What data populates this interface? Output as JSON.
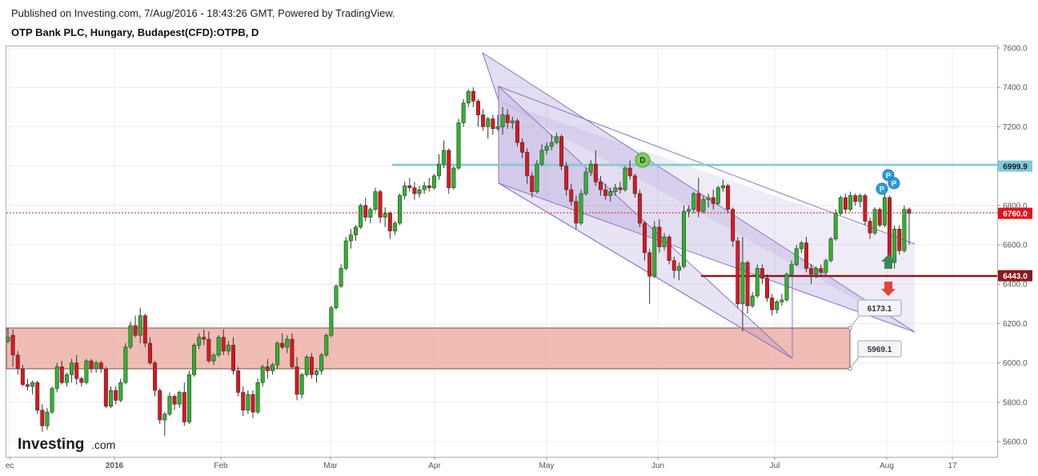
{
  "header": {
    "published": "Published on Investing.com, 7/Aug/2016 - 18:43:26 GMT, Powered by TradingView.",
    "title": "OTP Bank PLC, Hungary, Budapest(CFD):OTPB, D"
  },
  "logo": {
    "brand": "Investing",
    "suffix": ".com"
  },
  "colors": {
    "up": "#2db52d",
    "down": "#e0141e",
    "channel": "#9a86cc",
    "support_zone": "#e9a79a",
    "resistance_line": "#7fcbd9",
    "support_line": "#8b1a1a",
    "price_label": "#e0141e",
    "marker_d": "#7dcf5a",
    "marker_p": "#2a9de6"
  },
  "chart_data": {
    "type": "candlestick",
    "y_range": [
      5520,
      7660
    ],
    "y_ticks": [
      "7600.0",
      "7400.0",
      "7200.0",
      "7000.0",
      "6800.0",
      "6600.0",
      "6400.0",
      "6200.0",
      "6000.0",
      "5800.0",
      "5600.0"
    ],
    "x_labels": [
      "ec",
      "2016",
      "Feb",
      "Mar",
      "Apr",
      "May",
      "Jun",
      "Jul",
      "Aug",
      "17"
    ],
    "price_labels": [
      {
        "text": "6999.9",
        "value": 6999.9,
        "kind": "resistance"
      },
      {
        "text": "6760.0",
        "value": 6760.0,
        "kind": "last"
      },
      {
        "text": "6443.0",
        "value": 6443.0,
        "kind": "support"
      }
    ],
    "zone_labels": [
      {
        "text": "6173.1",
        "value": 6173.1
      },
      {
        "text": "5969.1",
        "value": 5969.1
      }
    ],
    "markers": [
      {
        "text": "D",
        "value": 6990
      },
      {
        "text": "P",
        "value": 6880
      },
      {
        "text": "P",
        "value": 6860
      },
      {
        "text": "P",
        "value": 6800
      }
    ],
    "candles": [
      [
        6110,
        6180,
        6100,
        6130
      ],
      [
        6140,
        6170,
        5980,
        6040
      ],
      [
        6040,
        6060,
        5940,
        5970
      ],
      [
        5970,
        5990,
        5880,
        5890
      ],
      [
        5890,
        5920,
        5860,
        5880
      ],
      [
        5880,
        5910,
        5840,
        5900
      ],
      [
        5900,
        5910,
        5740,
        5760
      ],
      [
        5760,
        5790,
        5650,
        5680
      ],
      [
        5680,
        5770,
        5660,
        5750
      ],
      [
        5750,
        5880,
        5740,
        5870
      ],
      [
        5870,
        6000,
        5850,
        5980
      ],
      [
        5980,
        6010,
        5890,
        5900
      ],
      [
        5900,
        5950,
        5880,
        5940
      ],
      [
        5940,
        6020,
        5900,
        6000
      ],
      [
        6000,
        6040,
        5890,
        5920
      ],
      [
        5920,
        5930,
        5880,
        5900
      ],
      [
        5900,
        6020,
        5890,
        6010
      ],
      [
        6010,
        6020,
        5950,
        5970
      ],
      [
        5970,
        6010,
        5950,
        6000
      ],
      [
        6000,
        6010,
        5950,
        5970
      ],
      [
        5970,
        5980,
        5770,
        5780
      ],
      [
        5780,
        5880,
        5770,
        5860
      ],
      [
        5860,
        5880,
        5790,
        5810
      ],
      [
        5810,
        5920,
        5800,
        5900
      ],
      [
        5900,
        6100,
        5890,
        6080
      ],
      [
        6080,
        6210,
        6070,
        6190
      ],
      [
        6190,
        6240,
        6130,
        6140
      ],
      [
        6140,
        6280,
        6100,
        6240
      ],
      [
        6240,
        6250,
        6080,
        6100
      ],
      [
        6100,
        6130,
        5990,
        6000
      ],
      [
        6000,
        6010,
        5830,
        5860
      ],
      [
        5860,
        5870,
        5690,
        5710
      ],
      [
        5710,
        5750,
        5630,
        5740
      ],
      [
        5740,
        5850,
        5730,
        5830
      ],
      [
        5830,
        5840,
        5760,
        5790
      ],
      [
        5790,
        5860,
        5770,
        5850
      ],
      [
        5850,
        5900,
        5680,
        5700
      ],
      [
        5700,
        5960,
        5690,
        5940
      ],
      [
        5940,
        6100,
        5930,
        6090
      ],
      [
        6090,
        6150,
        6070,
        6130
      ],
      [
        6130,
        6170,
        6090,
        6120
      ],
      [
        6120,
        6160,
        6000,
        6010
      ],
      [
        6010,
        6050,
        5990,
        6040
      ],
      [
        6040,
        6140,
        6030,
        6130
      ],
      [
        6130,
        6170,
        6040,
        6060
      ],
      [
        6060,
        6110,
        6040,
        6090
      ],
      [
        6090,
        6130,
        5940,
        5960
      ],
      [
        5960,
        5980,
        5830,
        5850
      ],
      [
        5850,
        5880,
        5730,
        5760
      ],
      [
        5760,
        5860,
        5740,
        5840
      ],
      [
        5840,
        5860,
        5720,
        5750
      ],
      [
        5750,
        5920,
        5740,
        5900
      ],
      [
        5900,
        5990,
        5880,
        5980
      ],
      [
        5980,
        6020,
        5920,
        5960
      ],
      [
        5960,
        6000,
        5940,
        5990
      ],
      [
        5990,
        6110,
        5970,
        6100
      ],
      [
        6100,
        6150,
        6070,
        6080
      ],
      [
        6080,
        6140,
        6050,
        6120
      ],
      [
        6120,
        6150,
        5970,
        5980
      ],
      [
        5980,
        6030,
        5810,
        5840
      ],
      [
        5840,
        5950,
        5820,
        5940
      ],
      [
        5940,
        6040,
        5930,
        6030
      ],
      [
        6030,
        6050,
        5920,
        5940
      ],
      [
        5940,
        5970,
        5900,
        5960
      ],
      [
        5960,
        6050,
        5940,
        6040
      ],
      [
        6040,
        6150,
        6030,
        6140
      ],
      [
        6140,
        6290,
        6130,
        6280
      ],
      [
        6280,
        6400,
        6270,
        6390
      ],
      [
        6390,
        6500,
        6380,
        6480
      ],
      [
        6480,
        6640,
        6470,
        6620
      ],
      [
        6620,
        6680,
        6580,
        6650
      ],
      [
        6650,
        6700,
        6620,
        6690
      ],
      [
        6690,
        6810,
        6680,
        6800
      ],
      [
        6800,
        6840,
        6720,
        6740
      ],
      [
        6740,
        6790,
        6710,
        6780
      ],
      [
        6780,
        6890,
        6770,
        6870
      ],
      [
        6870,
        6880,
        6710,
        6740
      ],
      [
        6740,
        6790,
        6690,
        6760
      ],
      [
        6760,
        6770,
        6630,
        6670
      ],
      [
        6670,
        6720,
        6650,
        6710
      ],
      [
        6710,
        6860,
        6700,
        6850
      ],
      [
        6850,
        6920,
        6830,
        6900
      ],
      [
        6900,
        6940,
        6870,
        6890
      ],
      [
        6890,
        6920,
        6830,
        6860
      ],
      [
        6860,
        6900,
        6840,
        6880
      ],
      [
        6880,
        6920,
        6860,
        6900
      ],
      [
        6900,
        6940,
        6870,
        6890
      ],
      [
        6890,
        6960,
        6880,
        6950
      ],
      [
        6950,
        7060,
        6930,
        7010
      ],
      [
        7010,
        7130,
        6990,
        7080
      ],
      [
        7080,
        7090,
        6860,
        6890
      ],
      [
        6890,
        7000,
        6880,
        6990
      ],
      [
        6990,
        7240,
        6980,
        7220
      ],
      [
        7220,
        7340,
        7200,
        7320
      ],
      [
        7320,
        7390,
        7300,
        7380
      ],
      [
        7380,
        7400,
        7300,
        7330
      ],
      [
        7330,
        7340,
        7200,
        7260
      ],
      [
        7260,
        7290,
        7180,
        7200
      ],
      [
        7200,
        7250,
        7140,
        7240
      ],
      [
        7240,
        7260,
        7160,
        7190
      ],
      [
        7190,
        7260,
        7180,
        7200
      ],
      [
        7200,
        7300,
        7160,
        7260
      ],
      [
        7260,
        7290,
        7190,
        7220
      ],
      [
        7220,
        7250,
        7190,
        7230
      ],
      [
        7230,
        7240,
        7100,
        7120
      ],
      [
        7120,
        7140,
        7040,
        7070
      ],
      [
        7070,
        7090,
        6910,
        6950
      ],
      [
        6950,
        6970,
        6840,
        6870
      ],
      [
        6870,
        7030,
        6860,
        7010
      ],
      [
        7010,
        7110,
        7000,
        7080
      ],
      [
        7080,
        7120,
        7060,
        7100
      ],
      [
        7100,
        7160,
        7080,
        7120
      ],
      [
        7120,
        7170,
        7110,
        7150
      ],
      [
        7150,
        7160,
        6980,
        7000
      ],
      [
        7000,
        7020,
        6850,
        6880
      ],
      [
        6880,
        6910,
        6800,
        6820
      ],
      [
        6820,
        6850,
        6680,
        6710
      ],
      [
        6710,
        6880,
        6700,
        6860
      ],
      [
        6860,
        6990,
        6850,
        6970
      ],
      [
        6970,
        7030,
        6950,
        7010
      ],
      [
        7010,
        7080,
        6900,
        6920
      ],
      [
        6920,
        6950,
        6850,
        6880
      ],
      [
        6880,
        6910,
        6830,
        6850
      ],
      [
        6850,
        6890,
        6820,
        6870
      ],
      [
        6870,
        6910,
        6850,
        6890
      ],
      [
        6890,
        6920,
        6860,
        6880
      ],
      [
        6880,
        7000,
        6870,
        6990
      ],
      [
        6990,
        7030,
        6930,
        6950
      ],
      [
        6950,
        6960,
        6840,
        6860
      ],
      [
        6860,
        6880,
        6690,
        6710
      ],
      [
        6710,
        6720,
        6520,
        6560
      ],
      [
        6560,
        6580,
        6300,
        6440
      ],
      [
        6440,
        6720,
        6430,
        6690
      ],
      [
        6690,
        6730,
        6560,
        6590
      ],
      [
        6590,
        6660,
        6570,
        6640
      ],
      [
        6640,
        6650,
        6500,
        6520
      ],
      [
        6520,
        6540,
        6430,
        6470
      ],
      [
        6470,
        6510,
        6420,
        6490
      ],
      [
        6490,
        6800,
        6480,
        6770
      ],
      [
        6770,
        6800,
        6740,
        6780
      ],
      [
        6780,
        6870,
        6760,
        6860
      ],
      [
        6860,
        6940,
        6740,
        6770
      ],
      [
        6770,
        6850,
        6760,
        6830
      ],
      [
        6830,
        6860,
        6790,
        6840
      ],
      [
        6840,
        6880,
        6780,
        6810
      ],
      [
        6810,
        6900,
        6800,
        6890
      ],
      [
        6890,
        6930,
        6870,
        6900
      ],
      [
        6900,
        6910,
        6760,
        6780
      ],
      [
        6780,
        6790,
        6590,
        6620
      ],
      [
        6620,
        6640,
        6280,
        6300
      ],
      [
        6300,
        6640,
        6160,
        6510
      ],
      [
        6510,
        6520,
        6250,
        6290
      ],
      [
        6290,
        6360,
        6280,
        6340
      ],
      [
        6340,
        6500,
        6330,
        6480
      ],
      [
        6480,
        6500,
        6400,
        6430
      ],
      [
        6430,
        6450,
        6310,
        6330
      ],
      [
        6330,
        6350,
        6240,
        6270
      ],
      [
        6270,
        6320,
        6250,
        6310
      ],
      [
        6310,
        6350,
        6290,
        6320
      ],
      [
        6320,
        6460,
        6310,
        6450
      ],
      [
        6450,
        6520,
        6440,
        6500
      ],
      [
        6500,
        6600,
        6490,
        6580
      ],
      [
        6580,
        6620,
        6560,
        6610
      ],
      [
        6610,
        6640,
        6460,
        6480
      ],
      [
        6480,
        6500,
        6400,
        6450
      ],
      [
        6450,
        6490,
        6430,
        6480
      ],
      [
        6480,
        6500,
        6440,
        6460
      ],
      [
        6460,
        6530,
        6450,
        6520
      ],
      [
        6520,
        6640,
        6510,
        6630
      ],
      [
        6630,
        6780,
        6620,
        6760
      ],
      [
        6760,
        6850,
        6750,
        6840
      ],
      [
        6840,
        6860,
        6760,
        6780
      ],
      [
        6780,
        6870,
        6770,
        6850
      ],
      [
        6850,
        6860,
        6800,
        6820
      ],
      [
        6820,
        6860,
        6790,
        6850
      ],
      [
        6850,
        6860,
        6700,
        6720
      ],
      [
        6720,
        6740,
        6630,
        6660
      ],
      [
        6660,
        6790,
        6650,
        6780
      ],
      [
        6780,
        6790,
        6690,
        6700
      ],
      [
        6700,
        6860,
        6690,
        6840
      ],
      [
        6840,
        6850,
        6500,
        6510
      ],
      [
        6510,
        6700,
        6480,
        6680
      ],
      [
        6680,
        6700,
        6550,
        6570
      ],
      [
        6570,
        6800,
        6560,
        6780
      ],
      [
        6780,
        6790,
        6600,
        6760
      ]
    ]
  }
}
